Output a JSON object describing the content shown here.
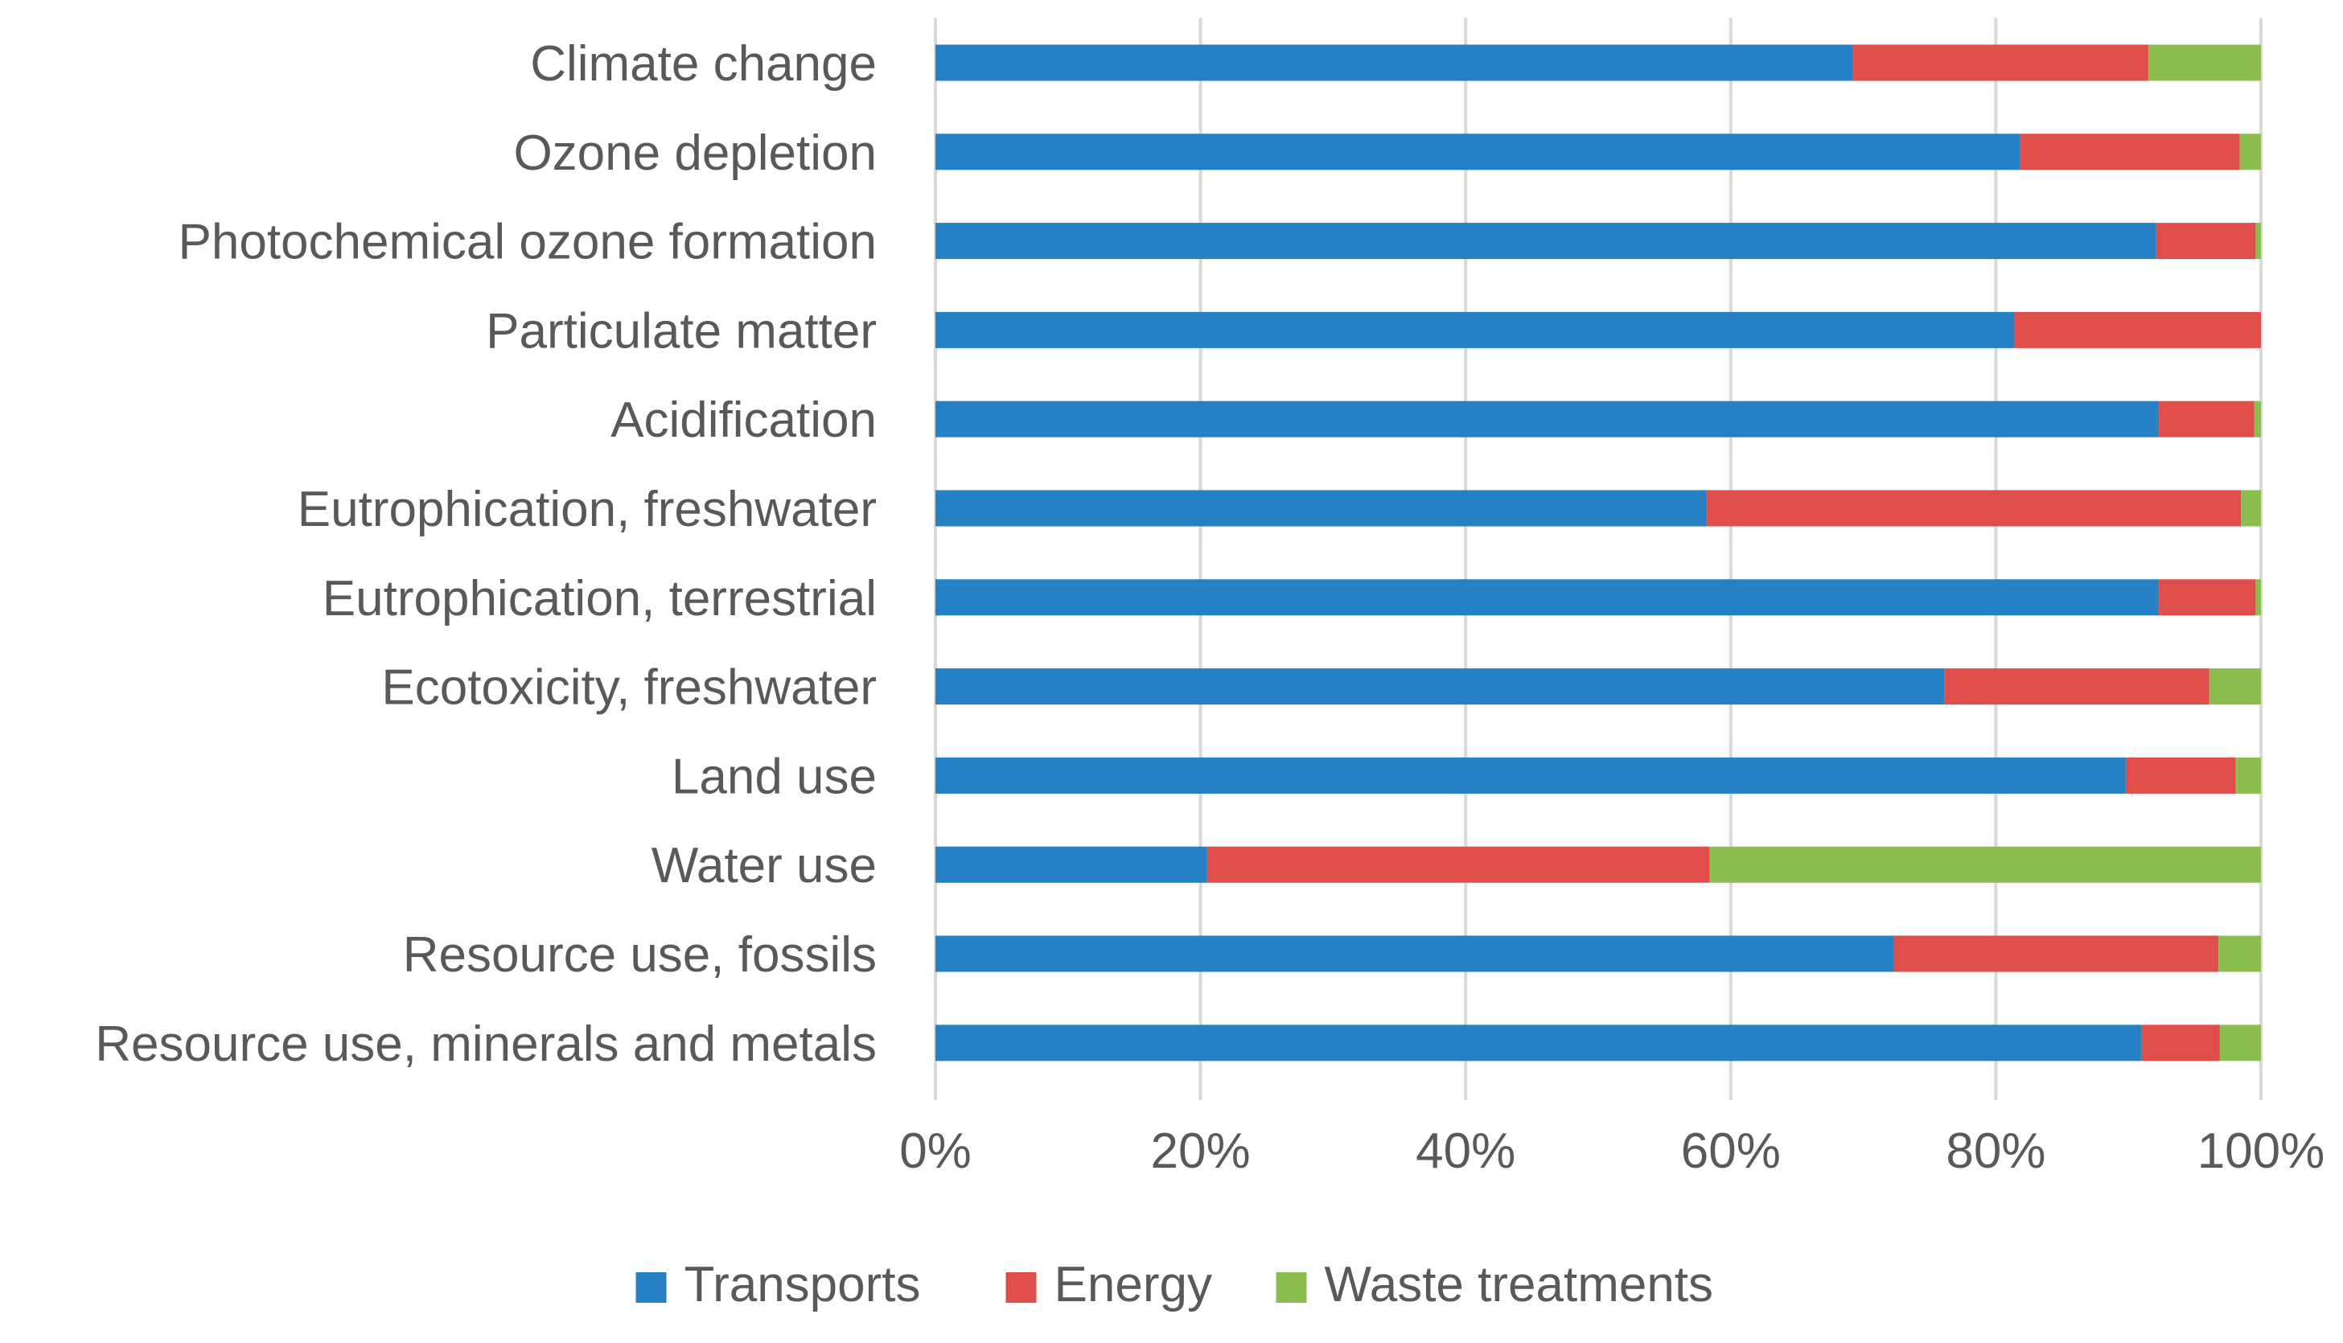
{
  "chart_data": {
    "type": "bar",
    "orientation": "horizontal",
    "stacked": "percent",
    "title": "",
    "xlabel": "",
    "ylabel": "",
    "xlim": [
      0,
      100
    ],
    "grid": true,
    "legend_position": "bottom",
    "x_ticks": [
      "0%",
      "20%",
      "40%",
      "60%",
      "80%",
      "100%"
    ],
    "categories": [
      "Climate change",
      "Ozone depletion",
      "Photochemical ozone formation",
      "Particulate matter",
      "Acidification",
      "Eutrophication, freshwater",
      "Eutrophication, terrestrial",
      "Ecotoxicity, freshwater",
      "Land use",
      "Water use",
      "Resource use, fossils",
      "Resource use, minerals and metals"
    ],
    "series": [
      {
        "name": "Transports",
        "color": "#2581C4",
        "values": [
          69.2,
          81.8,
          92.1,
          81.4,
          92.3,
          58.2,
          92.3,
          76.1,
          89.8,
          20.5,
          72.3,
          91.0
        ]
      },
      {
        "name": "Energy",
        "color": "#E04E4C",
        "values": [
          22.3,
          16.6,
          7.5,
          18.6,
          7.2,
          40.3,
          7.3,
          20.0,
          8.3,
          37.9,
          24.5,
          5.9
        ]
      },
      {
        "name": "Waste treatments",
        "color": "#8CBE4F",
        "values": [
          8.5,
          1.6,
          0.4,
          0.0,
          0.5,
          1.5,
          0.4,
          3.9,
          1.9,
          41.6,
          3.2,
          3.1
        ]
      }
    ]
  }
}
